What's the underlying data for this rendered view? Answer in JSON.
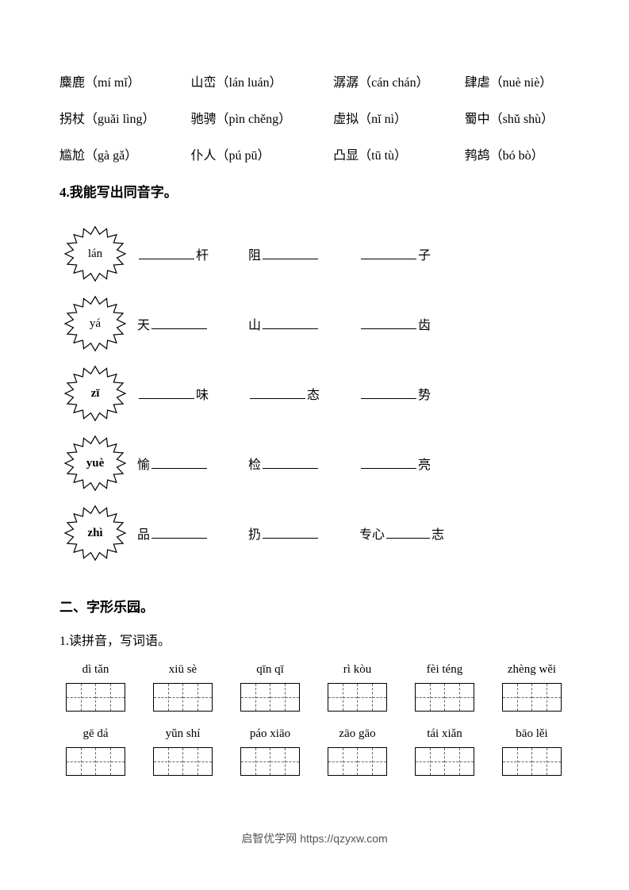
{
  "woi": [
    [
      {
        "word": "麋鹿",
        "pinyin": "（mí mǐ）"
      },
      {
        "word": "山峦",
        "pinyin": "（lán luán）"
      },
      {
        "word": "潺潺",
        "pinyin": "（cán chán）"
      },
      {
        "word": "肆虐",
        "pinyin": "（nuè niè）"
      }
    ],
    [
      {
        "word": "拐杖",
        "pinyin": "（guǎi lìng）"
      },
      {
        "word": "驰骋",
        "pinyin": "（pìn chěng）"
      },
      {
        "word": "虚拟",
        "pinyin": "（nǐ nì）"
      },
      {
        "word": "蜀中",
        "pinyin": "（shǔ shù）"
      }
    ],
    [
      {
        "word": "尴尬",
        "pinyin": "（gà gǎ）"
      },
      {
        "word": "仆人",
        "pinyin": "（pú pū）"
      },
      {
        "word": "凸显",
        "pinyin": "（tū tù）"
      },
      {
        "word": "鹁鸪",
        "pinyin": "（bó bò）"
      }
    ]
  ],
  "section4_title": "4.我能写出同音字。",
  "homophones": [
    {
      "label": "lán",
      "items": [
        {
          "pre": "",
          "post": "杆"
        },
        {
          "pre": "阻",
          "post": ""
        },
        {
          "pre": "",
          "post": "子"
        }
      ]
    },
    {
      "label": "yá",
      "items": [
        {
          "pre": "天",
          "post": ""
        },
        {
          "pre": "山",
          "post": ""
        },
        {
          "pre": "",
          "post": "齿"
        }
      ]
    },
    {
      "label": "zī",
      "bold": true,
      "items": [
        {
          "pre": "",
          "post": "味"
        },
        {
          "pre": "",
          "post": "态"
        },
        {
          "pre": "",
          "post": "势"
        }
      ]
    },
    {
      "label": "yuè",
      "bold": true,
      "items": [
        {
          "pre": "愉",
          "post": ""
        },
        {
          "pre": "检",
          "post": ""
        },
        {
          "pre": "",
          "post": "亮"
        }
      ]
    },
    {
      "label": "zhì",
      "bold": true,
      "items": [
        {
          "pre": "品",
          "post": ""
        },
        {
          "pre": "扔",
          "post": ""
        },
        {
          "pre": "专心",
          "post": "志"
        }
      ]
    }
  ],
  "section2_title": "二、字形乐园。",
  "section2_sub": "1.读拼音，写词语。",
  "pinyin_rows": [
    [
      "dì  tǎn",
      "xiū sè",
      "qīn qī",
      "rì  kòu",
      "fèi téng",
      "zhèng wěi"
    ],
    [
      "gē  dá",
      "yǔn  shí",
      "páo xiāo",
      "zāo gāo",
      "tái xiǎn",
      "bāo  lěi"
    ]
  ],
  "footer": "启智优学网 https://qzyxw.com"
}
